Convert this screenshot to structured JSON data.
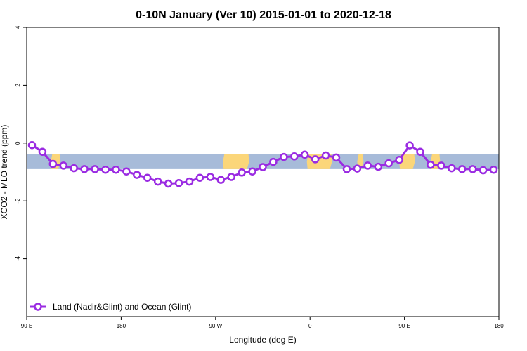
{
  "chart_data": {
    "type": "line",
    "title": "0-10N January (Ver 10)   2015-01-01 to 2020-12-18",
    "xlabel": "Longitude (deg E)",
    "ylabel": "XCO2 - MLO trend (ppm)",
    "xlim": [
      90,
      540
    ],
    "ylim": [
      -6,
      4
    ],
    "x_ticks": [
      {
        "value": 90,
        "label": "90 E"
      },
      {
        "value": 180,
        "label": "180"
      },
      {
        "value": 270,
        "label": "90 W"
      },
      {
        "value": 360,
        "label": "0"
      },
      {
        "value": 450,
        "label": "90 E"
      },
      {
        "value": 540,
        "label": "180"
      }
    ],
    "y_ticks": [
      {
        "value": 4,
        "label": "4"
      },
      {
        "value": 2,
        "label": "2"
      },
      {
        "value": 0,
        "label": "0"
      },
      {
        "value": -2,
        "label": "-2"
      },
      {
        "value": -4,
        "label": "-4"
      }
    ],
    "grid": false,
    "background_band": {
      "y_range": [
        -0.9,
        -0.38
      ],
      "ocean_color": "#a7bbd9",
      "land_color": "#fbd67a"
    },
    "land_spans": [
      [
        113,
        122
      ],
      [
        277,
        302
      ],
      [
        357,
        381
      ],
      [
        405,
        411
      ],
      [
        445,
        460
      ],
      [
        475,
        484
      ]
    ],
    "series": [
      {
        "name": "Land (Nadir&Glint) and Ocean (Glint)",
        "color": "#9a2be2",
        "x": [
          95,
          105,
          115,
          125,
          135,
          145,
          155,
          165,
          175,
          185,
          195,
          205,
          215,
          225,
          235,
          245,
          255,
          265,
          275,
          285,
          295,
          305,
          315,
          325,
          335,
          345,
          355,
          365,
          375,
          385,
          395,
          405,
          415,
          425,
          435,
          445,
          455,
          465,
          475,
          485,
          495,
          505,
          515,
          525,
          535
        ],
        "y": [
          -0.07,
          -0.3,
          -0.72,
          -0.78,
          -0.87,
          -0.9,
          -0.9,
          -0.92,
          -0.92,
          -0.98,
          -1.1,
          -1.2,
          -1.33,
          -1.4,
          -1.38,
          -1.33,
          -1.2,
          -1.17,
          -1.27,
          -1.17,
          -1.02,
          -0.98,
          -0.83,
          -0.65,
          -0.48,
          -0.46,
          -0.4,
          -0.56,
          -0.43,
          -0.5,
          -0.9,
          -0.88,
          -0.78,
          -0.82,
          -0.7,
          -0.58,
          -0.08,
          -0.3,
          -0.75,
          -0.78,
          -0.87,
          -0.9,
          -0.9,
          -0.94,
          -0.92
        ]
      }
    ],
    "legend": {
      "position": "bottom-left",
      "entries": [
        "Land (Nadir&Glint) and Ocean (Glint)"
      ]
    }
  }
}
